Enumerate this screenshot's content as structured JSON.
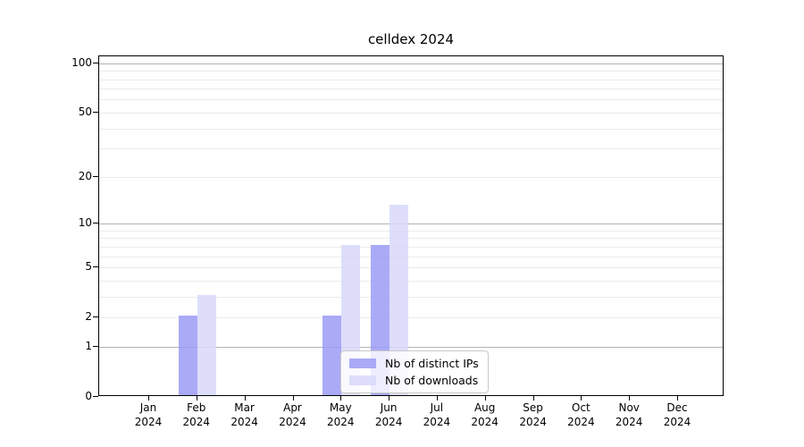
{
  "title": "celldex 2024",
  "chart_data": {
    "type": "bar",
    "title": "celldex 2024",
    "categories": [
      "Jan 2024",
      "Feb 2024",
      "Mar 2024",
      "Apr 2024",
      "May 2024",
      "Jun 2024",
      "Jul 2024",
      "Aug 2024",
      "Sep 2024",
      "Oct 2024",
      "Nov 2024",
      "Dec 2024"
    ],
    "series": [
      {
        "name": "Nb of distinct IPs",
        "color": "#9b9bf6",
        "values": [
          0,
          2,
          0,
          0,
          2,
          7,
          0,
          0,
          0,
          0,
          0,
          0
        ]
      },
      {
        "name": "Nb of downloads",
        "color": "#d8d8fa",
        "values": [
          0,
          3,
          0,
          0,
          7,
          13,
          0,
          0,
          0,
          0,
          0,
          0
        ]
      }
    ],
    "xlabel": "",
    "ylabel": "",
    "yscale": "log1p",
    "yticks": [
      0,
      1,
      2,
      5,
      10,
      20,
      50,
      100
    ],
    "ylim": [
      0,
      110
    ],
    "grid": "horizontal",
    "legend_position": "lower center",
    "style": {
      "background": "#ffffff",
      "spine_color": "#000000",
      "grid_major_color": "#b3b3b3",
      "grid_minor_color": "#ebebeb",
      "bar_opacity": 0.85,
      "legend_border_color": "#c9c9c9"
    }
  }
}
